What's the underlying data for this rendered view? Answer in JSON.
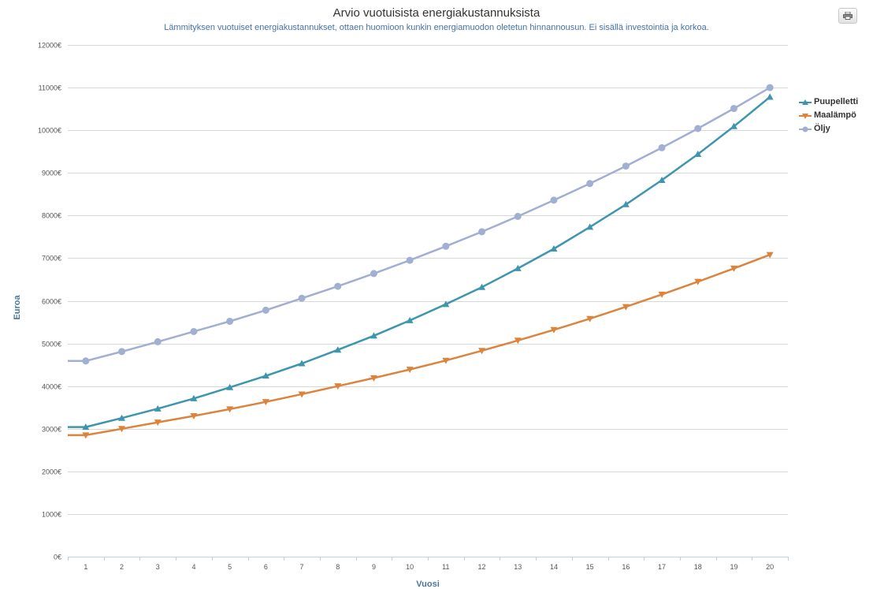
{
  "toolbar": {
    "print_icon": "printer-icon"
  },
  "chart_data": {
    "type": "line",
    "title": "Arvio vuotuisista energiakustannuksista",
    "subtitle": "Lämmityksen vuotuiset energiakustannukset, ottaen huomioon kunkin energiamuodon oletetun hinnannousun. Ei sisällä investointia ja korkoa.",
    "xlabel": "Vuosi",
    "ylabel": "Euroa",
    "categories": [
      "1",
      "2",
      "3",
      "4",
      "5",
      "6",
      "7",
      "8",
      "9",
      "10",
      "11",
      "12",
      "13",
      "14",
      "15",
      "16",
      "17",
      "18",
      "19",
      "20"
    ],
    "ylim": [
      0,
      12000
    ],
    "yticks": [
      0,
      1000,
      2000,
      3000,
      4000,
      5000,
      6000,
      7000,
      8000,
      9000,
      10000,
      11000,
      12000
    ],
    "ytick_labels": [
      "0€",
      "1000€",
      "2000€",
      "3000€",
      "4000€",
      "5000€",
      "6000€",
      "7000€",
      "8000€",
      "9000€",
      "10000€",
      "11000€",
      "12000€"
    ],
    "grid": true,
    "legend_position": "right",
    "series": [
      {
        "name": "Puupelletti",
        "color": "#3d96ae",
        "marker": "triangle",
        "values": [
          3040,
          3250,
          3470,
          3710,
          3970,
          4240,
          4530,
          4850,
          5180,
          5540,
          5920,
          6320,
          6760,
          7220,
          7730,
          8260,
          8830,
          9440,
          10090,
          10780
        ]
      },
      {
        "name": "Maalämpö",
        "color": "#db843d",
        "marker": "triangle-down",
        "values": [
          2850,
          3000,
          3150,
          3300,
          3460,
          3630,
          3810,
          4000,
          4190,
          4390,
          4600,
          4830,
          5070,
          5320,
          5580,
          5860,
          6150,
          6450,
          6760,
          7080
        ]
      },
      {
        "name": "Öljy",
        "color": "#a0afd2",
        "marker": "circle",
        "values": [
          4590,
          4810,
          5040,
          5280,
          5520,
          5780,
          6060,
          6340,
          6640,
          6950,
          7280,
          7620,
          7980,
          8360,
          8750,
          9160,
          9590,
          10040,
          10510,
          11000
        ]
      }
    ]
  }
}
